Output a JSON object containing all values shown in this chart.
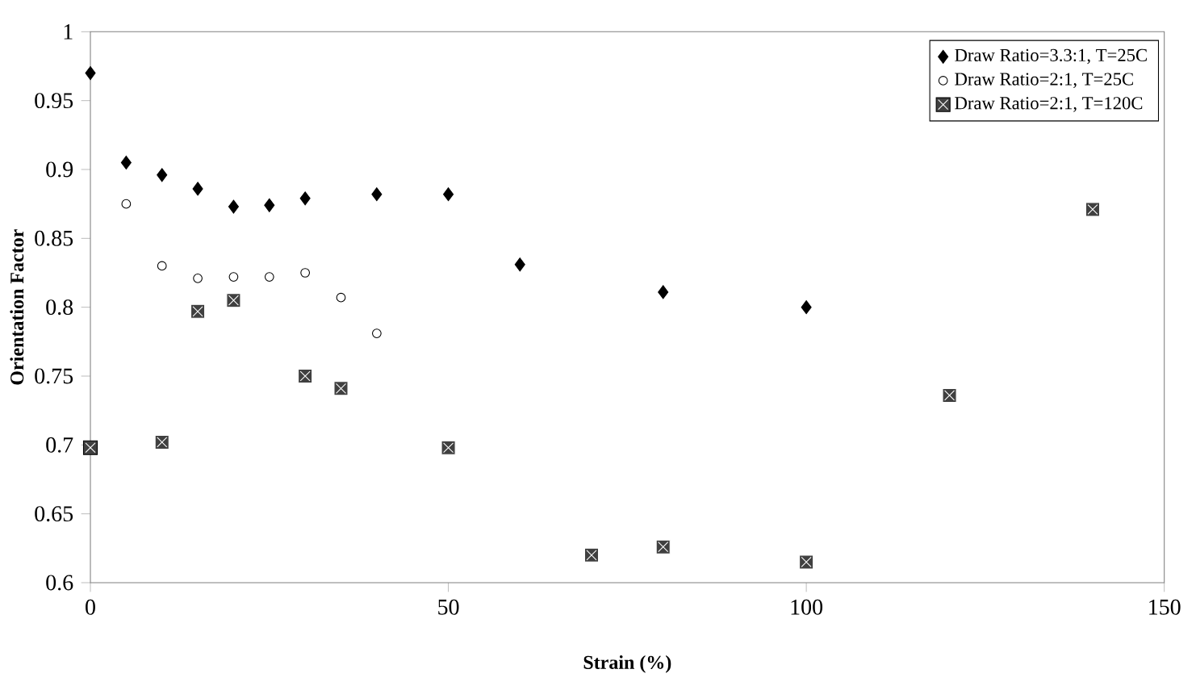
{
  "chart_data": {
    "type": "scatter",
    "xlabel": "Strain (%)",
    "ylabel": "Orientation Factor",
    "xlim": [
      0,
      150
    ],
    "xticks": [
      0,
      50,
      100,
      150
    ],
    "ylim": [
      0.6,
      1
    ],
    "yticks": [
      0.6,
      0.65,
      0.7,
      0.75,
      0.8,
      0.85,
      0.9,
      0.95,
      1
    ],
    "legend": "top right",
    "grid": false,
    "series": [
      {
        "name": "Draw Ratio=3.3:1, T=25C",
        "color": "#000000",
        "marker": "diamond",
        "x": [
          0,
          5,
          10,
          15,
          20,
          25,
          30,
          40,
          50,
          60,
          80,
          100
        ],
        "values": [
          0.97,
          0.905,
          0.896,
          0.886,
          0.873,
          0.874,
          0.879,
          0.882,
          0.882,
          0.831,
          0.811,
          0.8
        ]
      },
      {
        "name": "Draw Ratio=2:1, T=25C",
        "color": "#000000",
        "marker": "circle",
        "x": [
          5,
          10,
          15,
          20,
          25,
          30,
          35,
          40
        ],
        "values": [
          0.875,
          0.83,
          0.821,
          0.822,
          0.822,
          0.825,
          0.807,
          0.781
        ]
      },
      {
        "name": "Draw Ratio=2:1, T=120C",
        "color": "#404040",
        "marker": "square",
        "x": [
          0,
          10,
          15,
          20,
          30,
          35,
          50,
          70,
          80,
          100,
          120,
          140
        ],
        "values": [
          0.698,
          0.702,
          0.797,
          0.805,
          0.75,
          0.741,
          0.698,
          0.62,
          0.626,
          0.615,
          0.736,
          0.871
        ]
      }
    ]
  }
}
